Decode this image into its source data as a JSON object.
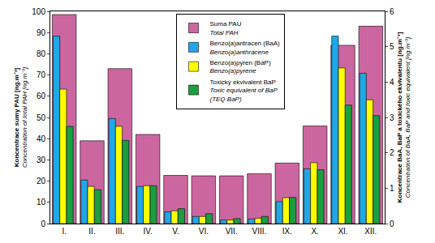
{
  "chart_data": {
    "type": "bar",
    "categories": [
      "I.",
      "II.",
      "III.",
      "IV.",
      "V.",
      "VI.",
      "VII.",
      "VIII.",
      "IX.",
      "X.",
      "XI.",
      "XII."
    ],
    "series": [
      {
        "name": "Suma PAU\nTotal PAH",
        "color": "#cc66a0",
        "axis": "y",
        "values": [
          98.5,
          39,
          73,
          42,
          22.7,
          22.5,
          22.5,
          23.5,
          28.5,
          46,
          84,
          93
        ]
      },
      {
        "name": "Benzo(a)antracen (BaA)\nBenzo(a)anthracene",
        "color": "#1fa8e6",
        "axis": "y2",
        "values": [
          5.3,
          1.23,
          2.97,
          1.05,
          0.33,
          0.2,
          0.1,
          0.13,
          0.62,
          1.55,
          5.3,
          4.25
        ]
      },
      {
        "name": "Benzo(a)pyren (BaP)\nBenzo(a)pyrene",
        "color": "#ffff00",
        "axis": "y2",
        "values": [
          3.8,
          1.05,
          2.75,
          1.07,
          0.36,
          0.2,
          0.1,
          0.15,
          0.73,
          1.72,
          4.4,
          3.5
        ]
      },
      {
        "name": "Toxický ekvivalent BaP\nToxic equivalent of BaP\n(TEQ BaP)",
        "color": "#1a9e40",
        "axis": "y2",
        "values": [
          2.75,
          0.96,
          2.35,
          1.07,
          0.42,
          0.28,
          0.14,
          0.2,
          0.74,
          1.52,
          3.35,
          3.05
        ]
      }
    ],
    "ylabel": "Koncentrace sumy PAU [ng.m⁻³]\nConcentration of total PAH [ng.m⁻³]",
    "y2label": "Koncentrace BaA, BaP a toxického ekvivalentu [ng.m⁻³]\nConcentration of BaA, BaP and toxic equivalent [ng.m⁻³]",
    "ylim": [
      0,
      100
    ],
    "yticks": [
      0,
      10,
      20,
      30,
      40,
      50,
      60,
      70,
      80,
      90,
      100
    ],
    "y2lim": [
      0,
      6
    ],
    "y2ticks": [
      0,
      1,
      2,
      3,
      4,
      5,
      6
    ],
    "grid": false,
    "legend": "top"
  }
}
